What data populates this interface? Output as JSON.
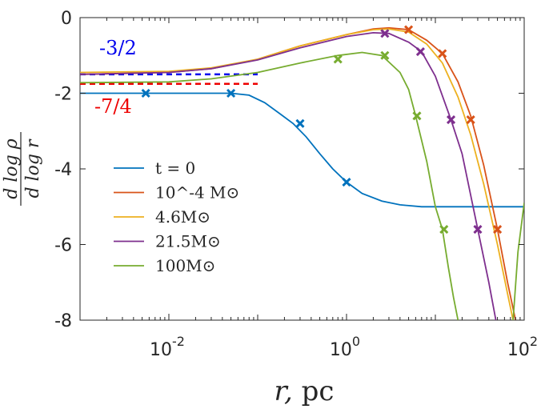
{
  "chart_data": {
    "type": "line",
    "xscale": "log",
    "xlim": [
      0.001,
      100
    ],
    "ylim": [
      -8,
      0
    ],
    "xticks": [
      {
        "value": 0.01,
        "base": "10",
        "exp": "-2"
      },
      {
        "value": 1,
        "base": "10",
        "exp": "0"
      },
      {
        "value": 100,
        "base": "10",
        "exp": "2"
      }
    ],
    "yticks": [
      {
        "value": 0,
        "label": "0"
      },
      {
        "value": -2,
        "label": "-2"
      },
      {
        "value": -4,
        "label": "-4"
      },
      {
        "value": -6,
        "label": "-6"
      },
      {
        "value": -8,
        "label": "-8"
      }
    ],
    "xlabel": {
      "var": "r",
      "sep": ",",
      "unit": "pc"
    },
    "ylabel": {
      "numerator": "d log ρ",
      "denominator": "d log r"
    },
    "legend_position": "left-center",
    "series": [
      {
        "name": "t = 0",
        "color": "#0072BD",
        "points": [
          [
            0.001,
            -2
          ],
          [
            0.003,
            -2
          ],
          [
            0.01,
            -2
          ],
          [
            0.03,
            -2
          ],
          [
            0.05,
            -2
          ],
          [
            0.08,
            -2.05
          ],
          [
            0.12,
            -2.25
          ],
          [
            0.18,
            -2.55
          ],
          [
            0.25,
            -2.8
          ],
          [
            0.35,
            -3.15
          ],
          [
            0.5,
            -3.6
          ],
          [
            0.7,
            -4.0
          ],
          [
            1.0,
            -4.35
          ],
          [
            1.5,
            -4.65
          ],
          [
            2.5,
            -4.85
          ],
          [
            4,
            -4.95
          ],
          [
            7,
            -5.0
          ],
          [
            20,
            -5.0
          ],
          [
            100,
            -5.0
          ]
        ],
        "markers": [
          [
            0.0055,
            -2.0
          ],
          [
            0.05,
            -2.0
          ],
          [
            0.3,
            -2.8
          ],
          [
            1.0,
            -4.35
          ]
        ]
      },
      {
        "name": "10^-4 M⊙",
        "color": "#D95319",
        "points": [
          [
            0.001,
            -1.5
          ],
          [
            0.01,
            -1.45
          ],
          [
            0.03,
            -1.35
          ],
          [
            0.1,
            -1.1
          ],
          [
            0.3,
            -0.75
          ],
          [
            1,
            -0.45
          ],
          [
            2,
            -0.3
          ],
          [
            3,
            -0.27
          ],
          [
            5,
            -0.32
          ],
          [
            8,
            -0.6
          ],
          [
            12,
            -0.95
          ],
          [
            18,
            -1.7
          ],
          [
            25,
            -2.6
          ],
          [
            35,
            -3.9
          ],
          [
            50,
            -5.6
          ],
          [
            65,
            -7.0
          ],
          [
            80,
            -8.0
          ]
        ],
        "markers": [
          [
            5,
            -0.32
          ],
          [
            12,
            -0.95
          ],
          [
            25,
            -2.7
          ],
          [
            50,
            -5.6
          ]
        ]
      },
      {
        "name": "4.6M⊙",
        "color": "#EDB120",
        "points": [
          [
            0.001,
            -1.45
          ],
          [
            0.01,
            -1.42
          ],
          [
            0.03,
            -1.33
          ],
          [
            0.1,
            -1.1
          ],
          [
            0.3,
            -0.75
          ],
          [
            1,
            -0.45
          ],
          [
            2,
            -0.32
          ],
          [
            3,
            -0.3
          ],
          [
            5,
            -0.38
          ],
          [
            8,
            -0.7
          ],
          [
            12,
            -1.2
          ],
          [
            18,
            -2.1
          ],
          [
            25,
            -3.1
          ],
          [
            35,
            -4.4
          ],
          [
            50,
            -6.0
          ],
          [
            65,
            -7.3
          ],
          [
            75,
            -8.0
          ]
        ],
        "markers": []
      },
      {
        "name": "21.5M⊙",
        "color": "#7E2F8E",
        "points": [
          [
            0.001,
            -1.5
          ],
          [
            0.01,
            -1.45
          ],
          [
            0.03,
            -1.35
          ],
          [
            0.1,
            -1.12
          ],
          [
            0.3,
            -0.8
          ],
          [
            1,
            -0.5
          ],
          [
            2,
            -0.4
          ],
          [
            3,
            -0.42
          ],
          [
            5,
            -0.65
          ],
          [
            7,
            -0.9
          ],
          [
            10,
            -1.55
          ],
          [
            15,
            -2.7
          ],
          [
            20,
            -3.6
          ],
          [
            30,
            -5.6
          ],
          [
            40,
            -7.0
          ],
          [
            48,
            -8.0
          ]
        ],
        "markers": [
          [
            2.7,
            -0.42
          ],
          [
            6.8,
            -0.9
          ],
          [
            15,
            -2.7
          ],
          [
            30,
            -5.6
          ]
        ]
      },
      {
        "name": "100M⊙",
        "color": "#77AC30",
        "points": [
          [
            0.001,
            -1.72
          ],
          [
            0.01,
            -1.7
          ],
          [
            0.03,
            -1.62
          ],
          [
            0.1,
            -1.45
          ],
          [
            0.3,
            -1.2
          ],
          [
            0.8,
            -1.0
          ],
          [
            1.5,
            -0.92
          ],
          [
            2.5,
            -1.0
          ],
          [
            4,
            -1.45
          ],
          [
            5,
            -1.9
          ],
          [
            6,
            -2.6
          ],
          [
            8,
            -3.8
          ],
          [
            10,
            -5.0
          ],
          [
            12,
            -5.6
          ],
          [
            14,
            -6.6
          ],
          [
            16,
            -7.4
          ],
          [
            18,
            -8.0
          ]
        ],
        "markers": [
          [
            0.8,
            -1.1
          ],
          [
            2.7,
            -1.0
          ],
          [
            6.2,
            -2.6
          ],
          [
            12.5,
            -5.6
          ]
        ],
        "tail": [
          [
            75,
            -8.0
          ],
          [
            85,
            -6.2
          ],
          [
            100,
            -4.9
          ]
        ]
      }
    ],
    "reference_lines": [
      {
        "label": "-3/2",
        "slope": -1.5,
        "color": "#0000EE",
        "x": [
          0.001,
          0.1
        ]
      },
      {
        "label": "-7/4",
        "slope": -1.75,
        "color": "#EE0000",
        "x": [
          0.001,
          0.1
        ]
      }
    ]
  }
}
